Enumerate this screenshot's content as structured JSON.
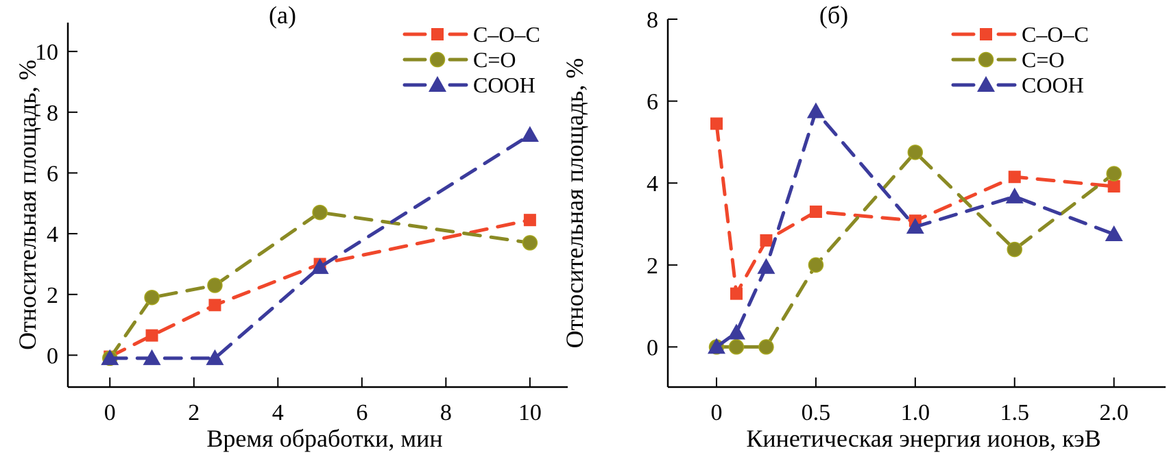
{
  "colors": {
    "C-O-C": "#f0472b",
    "C=O": "#8a8a24",
    "COOH": "#3b3b9c"
  },
  "chart_data": [
    {
      "type": "line",
      "title": "(а)",
      "xlabel": "Время обработки, мин",
      "ylabel": "Относительная площадь, %",
      "xlim": [
        -1,
        10.9
      ],
      "ylim": [
        -1.05,
        10.95
      ],
      "xticks": [
        0,
        2,
        4,
        6,
        8,
        10
      ],
      "xtick_labels": [
        "0",
        "2",
        "4",
        "6",
        "8",
        "10"
      ],
      "yticks": [
        0,
        2,
        4,
        6,
        8,
        10
      ],
      "ytick_labels": [
        "0",
        "2",
        "4",
        "6",
        "8",
        "10"
      ],
      "grid": false,
      "legend_position": "top-right",
      "x": [
        0,
        1,
        2.5,
        5,
        10
      ],
      "series": [
        {
          "name": "C–O–C",
          "key": "C-O-C",
          "marker": "square",
          "values": [
            -0.05,
            0.65,
            1.65,
            3.0,
            4.45
          ]
        },
        {
          "name": "C=O",
          "key": "C=O",
          "marker": "circle",
          "values": [
            -0.1,
            1.9,
            2.3,
            4.7,
            3.7
          ]
        },
        {
          "name": "COOH",
          "key": "COOH",
          "marker": "triangle",
          "values": [
            -0.1,
            -0.1,
            -0.1,
            2.9,
            7.25
          ]
        }
      ]
    },
    {
      "type": "line",
      "title": "(б)",
      "xlabel": "Кинетическая энергия ионов, кэВ",
      "ylabel": "Относительная площадь, %",
      "xlim": [
        -0.245,
        2.26
      ],
      "ylim": [
        -0.98,
        8
      ],
      "xticks": [
        0,
        0.5,
        1.0,
        1.5,
        2.0
      ],
      "xtick_labels": [
        "0",
        "0.5",
        "1.0",
        "1.5",
        "2.0"
      ],
      "yticks": [
        0,
        2,
        4,
        6,
        8
      ],
      "ytick_labels": [
        "0",
        "2",
        "4",
        "6",
        "8"
      ],
      "grid": false,
      "legend_position": "top-right",
      "x": [
        0,
        0.1,
        0.25,
        0.5,
        1.0,
        1.5,
        2.0
      ],
      "series": [
        {
          "name": "C–O–C",
          "key": "C-O-C",
          "marker": "square",
          "values": [
            5.45,
            1.3,
            2.6,
            3.3,
            3.08,
            4.15,
            3.92
          ]
        },
        {
          "name": "C=O",
          "key": "C=O",
          "marker": "circle",
          "values": [
            0,
            0,
            0,
            2.0,
            4.75,
            2.38,
            4.23
          ]
        },
        {
          "name": "COOH",
          "key": "COOH",
          "marker": "triangle",
          "values": [
            0,
            0.35,
            1.95,
            5.75,
            2.93,
            3.67,
            2.75
          ]
        }
      ]
    }
  ]
}
